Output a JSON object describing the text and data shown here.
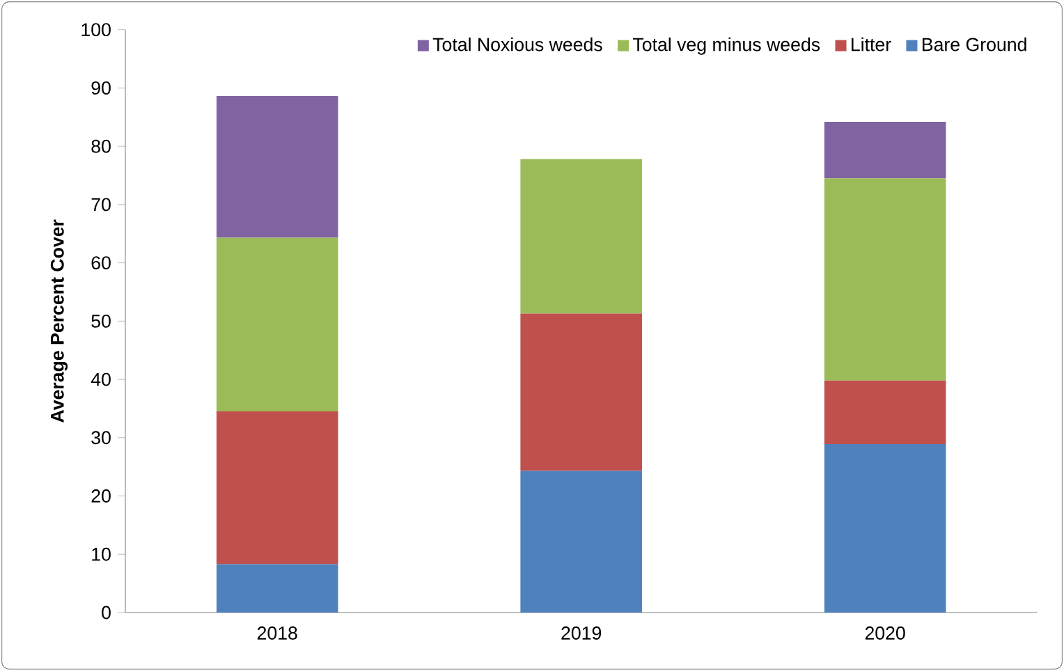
{
  "chart_data": {
    "type": "bar",
    "stacked": true,
    "ylabel": "Average Percent Cover",
    "categories": [
      "2018",
      "2019",
      "2020"
    ],
    "series": [
      {
        "name": "Bare Ground",
        "color": "#4f81bd",
        "values": [
          8.3,
          24.3,
          28.9
        ]
      },
      {
        "name": "Litter",
        "color": "#c0504d",
        "values": [
          26.2,
          27.0,
          10.9
        ]
      },
      {
        "name": "Total veg minus weeds",
        "color": "#9bbb59",
        "values": [
          29.8,
          26.5,
          34.7
        ]
      },
      {
        "name": "Total Noxious weeds",
        "color": "#8064a2",
        "values": [
          24.3,
          0,
          9.7
        ]
      }
    ],
    "ylim": [
      0,
      100
    ],
    "yticks": [
      0,
      10,
      20,
      30,
      40,
      50,
      60,
      70,
      80,
      90,
      100
    ],
    "legend": "top right"
  }
}
